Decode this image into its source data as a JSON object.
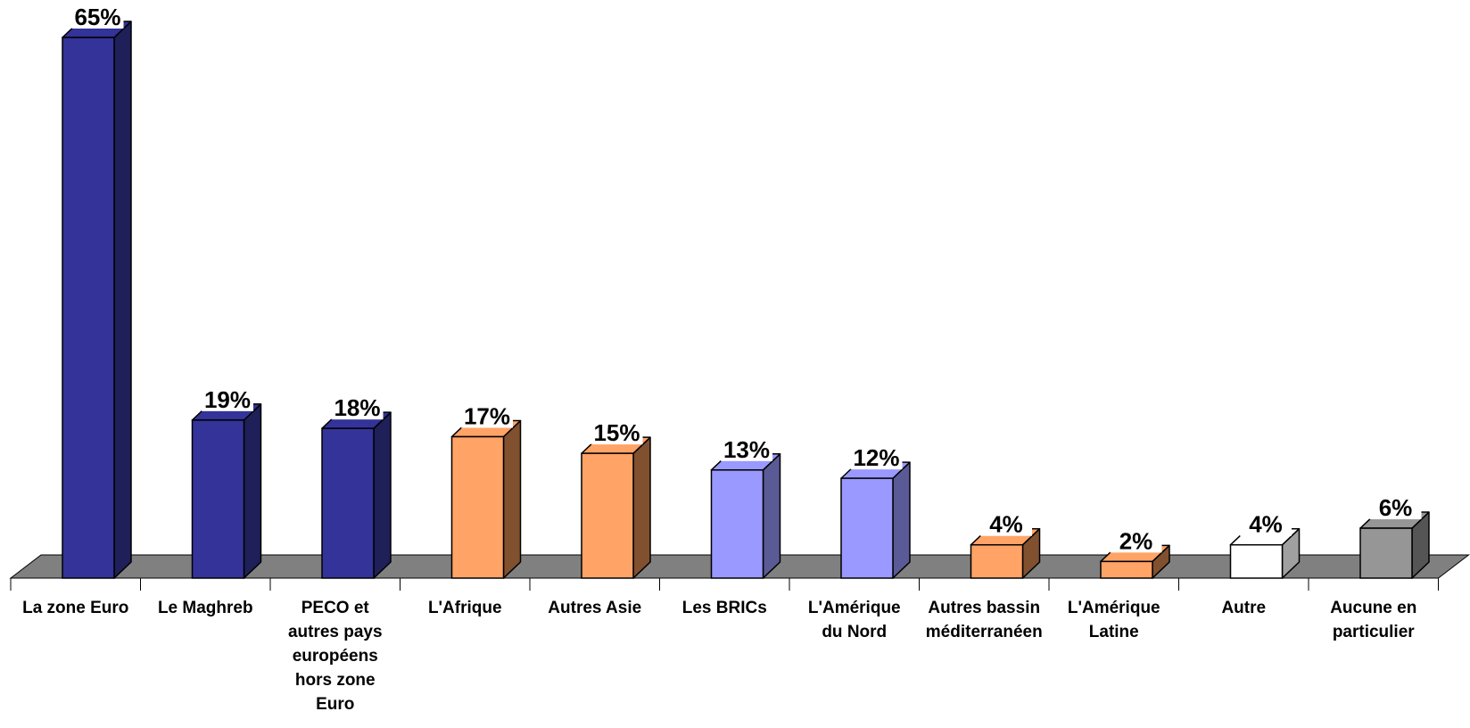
{
  "chart_data": {
    "type": "bar",
    "categories": [
      "La zone Euro",
      "Le Maghreb",
      "PECO et autres pays européens hors zone Euro",
      "L'Afrique",
      "Autres Asie",
      "Les BRICs",
      "L'Amérique du Nord",
      "Autres bassin méditerranéen",
      "L'Amérique Latine",
      "Autre",
      "Aucune en particulier"
    ],
    "category_lines": [
      [
        "La zone Euro"
      ],
      [
        "Le Maghreb"
      ],
      [
        "PECO et",
        "autres pays",
        "européens",
        "hors zone",
        "Euro"
      ],
      [
        "L'Afrique"
      ],
      [
        "Autres Asie"
      ],
      [
        "Les BRICs"
      ],
      [
        "L'Amérique",
        "du Nord"
      ],
      [
        "Autres bassin",
        "méditerranéen"
      ],
      [
        "L'Amérique",
        "Latine"
      ],
      [
        "Autre"
      ],
      [
        "Aucune en",
        "particulier"
      ]
    ],
    "values": [
      65,
      19,
      18,
      17,
      15,
      13,
      12,
      4,
      2,
      4,
      6
    ],
    "data_labels": [
      "65%",
      "19%",
      "18%",
      "17%",
      "15%",
      "13%",
      "12%",
      "4%",
      "2%",
      "4%",
      "6%"
    ],
    "colors": [
      "#333399",
      "#333399",
      "#333399",
      "#FFA366",
      "#FFA366",
      "#9999FF",
      "#9999FF",
      "#FFA366",
      "#FFA366",
      "#FFFFFF",
      "#969696"
    ],
    "side_colors": [
      "#1F1F59",
      "#1F1F59",
      "#1F1F59",
      "#80502F",
      "#80502F",
      "#5A5A96",
      "#5A5A96",
      "#80502F",
      "#80502F",
      "#A0A0A0",
      "#555555"
    ],
    "floor_color": "#808080",
    "ylim": [
      0,
      65
    ],
    "grid": false,
    "legend": "none",
    "title": "",
    "xlabel": "",
    "ylabel": ""
  }
}
